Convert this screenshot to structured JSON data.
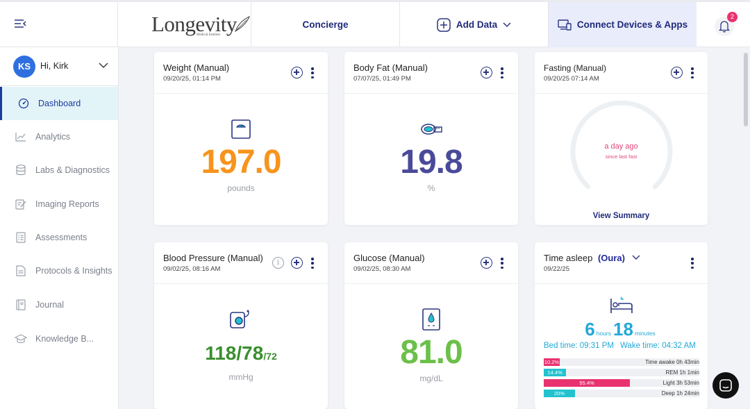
{
  "header": {
    "logo_text": "Longevity",
    "logo_subtext": "Medical Institute",
    "nav": {
      "concierge": "Concierge",
      "add_data": "Add Data",
      "connect": "Connect Devices & Apps"
    },
    "notification_count": "2"
  },
  "user": {
    "initials": "KS",
    "greeting": "Hi, Kirk"
  },
  "sidebar": {
    "items": [
      {
        "label": "Dashboard"
      },
      {
        "label": "Analytics"
      },
      {
        "label": "Labs & Diagnostics"
      },
      {
        "label": "Imaging Reports"
      },
      {
        "label": "Assessments"
      },
      {
        "label": "Protocols & Insights"
      },
      {
        "label": "Journal"
      },
      {
        "label": "Knowledge B..."
      }
    ]
  },
  "cards": {
    "weight": {
      "title": "Weight (Manual)",
      "date": "09/20/25, 01:14 PM",
      "value": "197.0",
      "unit": "pounds",
      "color": "#f7941d"
    },
    "bodyfat": {
      "title": "Body Fat (Manual)",
      "date": "07/07/25, 01:49 PM",
      "value": "19.8",
      "unit": "%",
      "color": "#4a4a9a"
    },
    "fasting": {
      "title": "Fasting (Manual)",
      "date": "09/20/25 07:14 AM",
      "status": "a day ago",
      "status_sub": "since last fast",
      "link": "View Summary"
    },
    "bp": {
      "title": "Blood Pressure (Manual)",
      "date": "09/02/25, 08:16 AM",
      "value": "118/78",
      "pulse": "/72",
      "unit": "mmHg",
      "color": "#3a8f2e"
    },
    "glucose": {
      "title": "Glucose (Manual)",
      "date": "09/02/25, 08:30 AM",
      "value": "81.0",
      "unit": "mg/dL",
      "color": "#6cc04a"
    },
    "sleep": {
      "title": "Time asleep",
      "source": "(Oura)",
      "date": "09/22/25",
      "hours": "6",
      "hours_unit": "hours",
      "minutes": "18",
      "minutes_unit": "minutes",
      "bed_time": "Bed time: 09:31 PM",
      "wake_time": "Wake time: 04:32 AM",
      "stages": [
        {
          "pct": "10.2%",
          "fraction": 0.102,
          "label": "Time awake 0h 43min",
          "color": "#e8336f"
        },
        {
          "pct": "14.4%",
          "fraction": 0.144,
          "label": "REM 1h 1min",
          "color": "#23c2cf"
        },
        {
          "pct": "55.4%",
          "fraction": 0.554,
          "label": "Light 3h 53min",
          "color": "#e8336f"
        },
        {
          "pct": "20%",
          "fraction": 0.2,
          "label": "Deep 1h 24min",
          "color": "#23c2cf"
        }
      ]
    }
  }
}
